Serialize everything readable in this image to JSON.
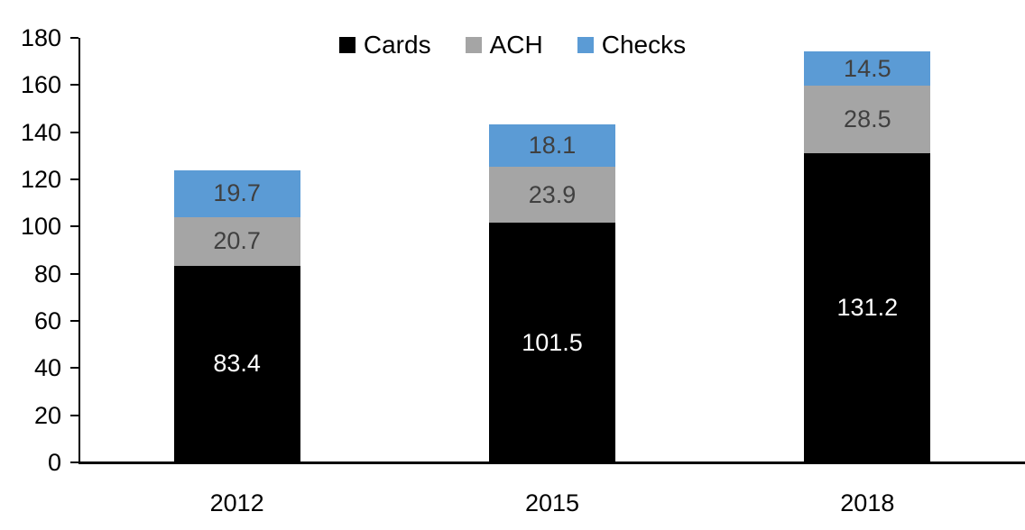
{
  "chart_data": {
    "type": "bar",
    "subtype": "stacked-vertical",
    "title": "",
    "xlabel": "",
    "ylabel": "",
    "categories": [
      "2012",
      "2015",
      "2018"
    ],
    "series": [
      {
        "name": "Cards",
        "color": "#000000",
        "label_color": "#ffffff",
        "values": [
          83.4,
          101.5,
          131.2
        ]
      },
      {
        "name": "ACH",
        "color": "#A5A5A5",
        "label_color": "#404040",
        "values": [
          20.7,
          23.9,
          28.5
        ]
      },
      {
        "name": "Checks",
        "color": "#5B9BD5",
        "label_color": "#404040",
        "values": [
          19.7,
          18.1,
          14.5
        ]
      }
    ],
    "ylim": [
      0,
      180
    ],
    "yticks": [
      0,
      20,
      40,
      60,
      80,
      100,
      120,
      140,
      160,
      180
    ],
    "grid": "off",
    "legend_position": "top",
    "data_labels": "inside-center",
    "axis_color": "#000000",
    "background_color": "#ffffff"
  }
}
